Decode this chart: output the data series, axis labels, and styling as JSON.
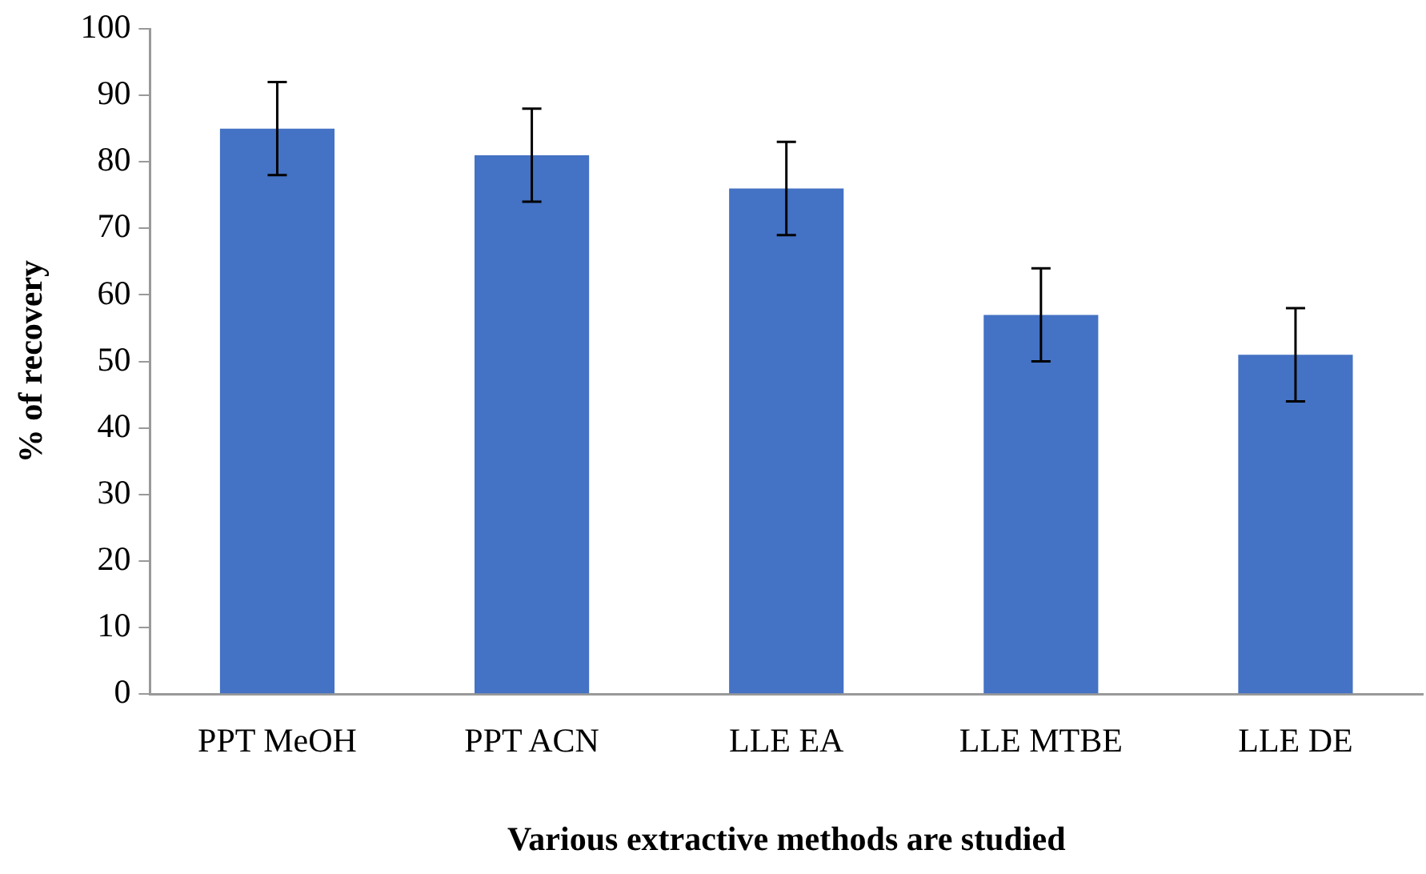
{
  "chart_data": {
    "type": "bar",
    "xlabel": "Various extractive methods are studied",
    "ylabel": "% of recovery",
    "categories": [
      "PPT MeOH",
      "PPT ACN",
      "LLE EA",
      "LLE MTBE",
      "LLE DE"
    ],
    "values": [
      85,
      81,
      76,
      57,
      51
    ],
    "errors": [
      7,
      7,
      7,
      7,
      7
    ],
    "color": "#4472c4",
    "ylim": [
      0,
      100
    ],
    "yticks": [
      0,
      10,
      20,
      30,
      40,
      50,
      60,
      70,
      80,
      90,
      100
    ],
    "grid": false,
    "legend": false
  }
}
